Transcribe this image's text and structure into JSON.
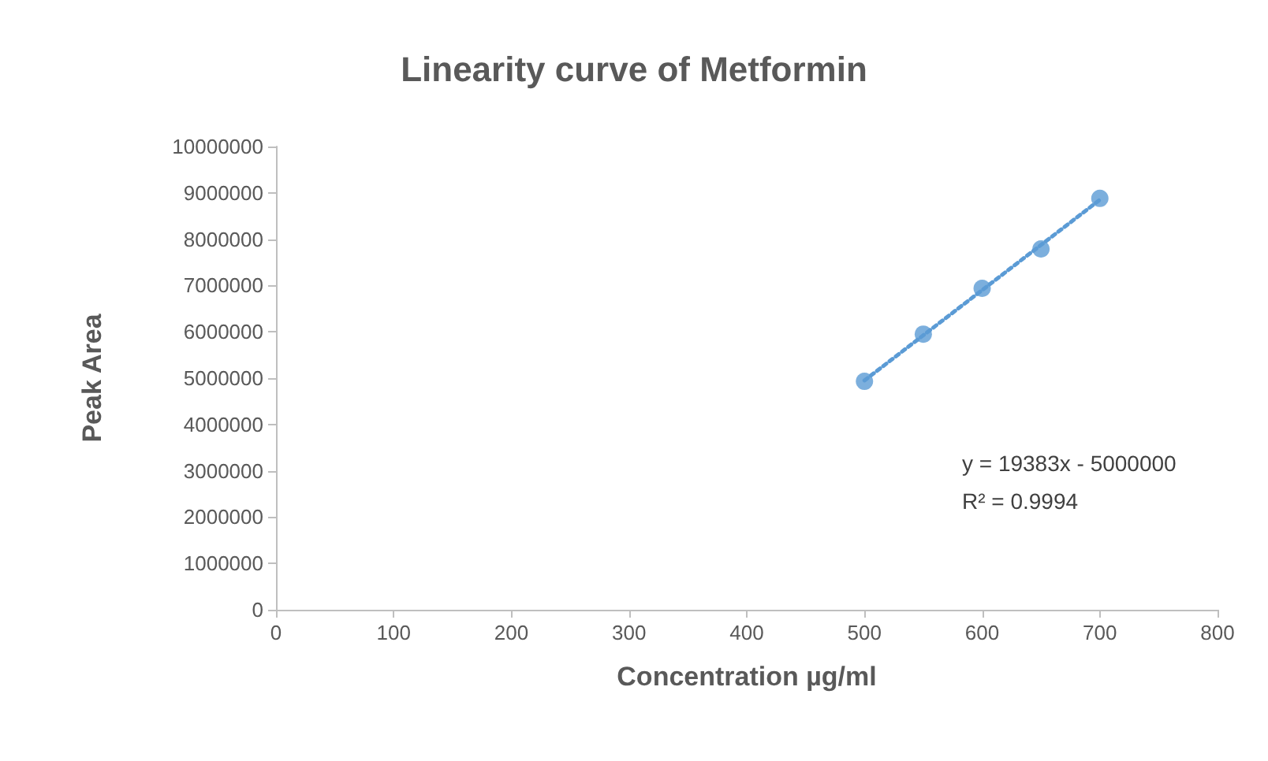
{
  "chart_data": {
    "type": "scatter",
    "title": "Linearity curve of Metformin",
    "xlabel": "Concentration µg/ml",
    "ylabel": "Peak Area",
    "series": [
      {
        "type": "scatter",
        "color": "#5b9bd5",
        "marker": "circle",
        "x": [
          500,
          550,
          600,
          650,
          700
        ],
        "values": [
          4930000,
          5950000,
          6940000,
          7790000,
          8880000
        ]
      },
      {
        "type": "line",
        "color": "#5b9bd5",
        "marker": "none",
        "line_style": "dotted",
        "x": [
          500,
          700
        ],
        "values": [
          4950000,
          8850000
        ]
      }
    ],
    "xlim": [
      0,
      800
    ],
    "xticks": [
      0,
      100,
      200,
      300,
      400,
      500,
      600,
      700,
      800
    ],
    "ylim": [
      0,
      10000000
    ],
    "yticks": [
      0,
      1000000,
      2000000,
      3000000,
      4000000,
      5000000,
      6000000,
      7000000,
      8000000,
      9000000,
      10000000
    ],
    "grid": false,
    "annotations": [
      "y = 19383x - 5000000",
      "R² = 0.9994"
    ]
  }
}
